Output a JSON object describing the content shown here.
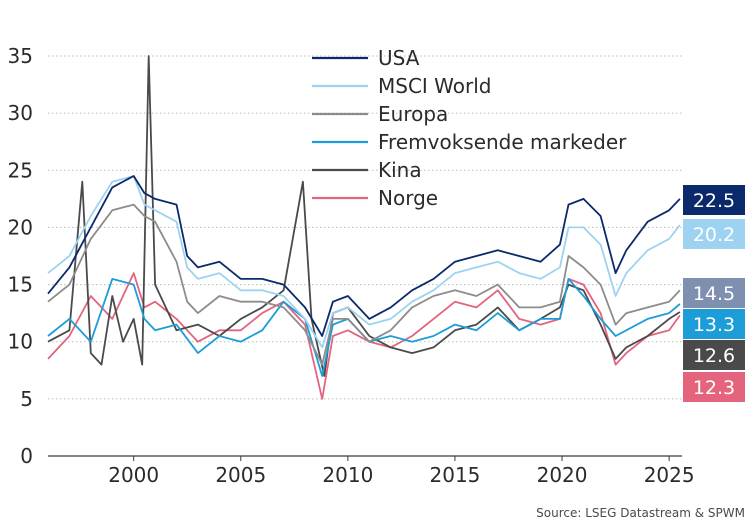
{
  "chart_data": {
    "type": "line",
    "title": "",
    "xlabel": "",
    "ylabel": "",
    "xlim": [
      1996,
      2025.6
    ],
    "ylim": [
      0,
      35
    ],
    "y_ticks": [
      0,
      5,
      10,
      15,
      20,
      25,
      30,
      35
    ],
    "x_ticks": [
      2000,
      2005,
      2010,
      2015,
      2020,
      2025
    ],
    "grid": "horizontal-dotted",
    "legend_position": "top-center",
    "source": "Source: LSEG Datastream & SPWM",
    "series": [
      {
        "name": "USA",
        "color": "#0b2a6b",
        "end_label": "22.5",
        "points": [
          [
            1996,
            14.2
          ],
          [
            1997,
            16.5
          ],
          [
            1998,
            20.0
          ],
          [
            1999,
            23.5
          ],
          [
            2000,
            24.5
          ],
          [
            2000.5,
            23.0
          ],
          [
            2001,
            22.5
          ],
          [
            2002,
            22.0
          ],
          [
            2002.5,
            17.5
          ],
          [
            2003,
            16.5
          ],
          [
            2004,
            17.0
          ],
          [
            2005,
            15.5
          ],
          [
            2006,
            15.5
          ],
          [
            2007,
            15.0
          ],
          [
            2008,
            13.0
          ],
          [
            2008.8,
            10.5
          ],
          [
            2009.3,
            13.5
          ],
          [
            2010,
            14.0
          ],
          [
            2011,
            12.0
          ],
          [
            2012,
            13.0
          ],
          [
            2013,
            14.5
          ],
          [
            2014,
            15.5
          ],
          [
            2015,
            17.0
          ],
          [
            2016,
            17.5
          ],
          [
            2017,
            18.0
          ],
          [
            2018,
            17.5
          ],
          [
            2019,
            17.0
          ],
          [
            2019.9,
            18.5
          ],
          [
            2020.3,
            22.0
          ],
          [
            2021,
            22.5
          ],
          [
            2021.8,
            21.0
          ],
          [
            2022.5,
            16.0
          ],
          [
            2023,
            18.0
          ],
          [
            2024,
            20.5
          ],
          [
            2025,
            21.5
          ],
          [
            2025.5,
            22.5
          ]
        ]
      },
      {
        "name": "MSCI World",
        "color": "#9dd3f0",
        "end_label": "20.2",
        "points": [
          [
            1996,
            16.0
          ],
          [
            1997,
            17.5
          ],
          [
            1998,
            21.0
          ],
          [
            1999,
            24.0
          ],
          [
            2000,
            24.5
          ],
          [
            2000.5,
            22.0
          ],
          [
            2001,
            21.5
          ],
          [
            2002,
            20.5
          ],
          [
            2002.5,
            16.5
          ],
          [
            2003,
            15.5
          ],
          [
            2004,
            16.0
          ],
          [
            2005,
            14.5
          ],
          [
            2006,
            14.5
          ],
          [
            2007,
            14.0
          ],
          [
            2008,
            12.0
          ],
          [
            2008.8,
            9.5
          ],
          [
            2009.3,
            12.5
          ],
          [
            2010,
            13.0
          ],
          [
            2011,
            11.5
          ],
          [
            2012,
            12.0
          ],
          [
            2013,
            13.5
          ],
          [
            2014,
            14.5
          ],
          [
            2015,
            16.0
          ],
          [
            2016,
            16.5
          ],
          [
            2017,
            17.0
          ],
          [
            2018,
            16.0
          ],
          [
            2019,
            15.5
          ],
          [
            2019.9,
            16.5
          ],
          [
            2020.3,
            20.0
          ],
          [
            2021,
            20.0
          ],
          [
            2021.8,
            18.5
          ],
          [
            2022.5,
            14.0
          ],
          [
            2023,
            16.0
          ],
          [
            2024,
            18.0
          ],
          [
            2025,
            19.0
          ],
          [
            2025.5,
            20.2
          ]
        ]
      },
      {
        "name": "Europa",
        "color": "#8c8c8c",
        "end_label": "14.5",
        "points": [
          [
            1996,
            13.5
          ],
          [
            1997,
            15.0
          ],
          [
            1998,
            19.0
          ],
          [
            1999,
            21.5
          ],
          [
            2000,
            22.0
          ],
          [
            2000.5,
            21.0
          ],
          [
            2001,
            20.5
          ],
          [
            2002,
            17.0
          ],
          [
            2002.5,
            13.5
          ],
          [
            2003,
            12.5
          ],
          [
            2004,
            14.0
          ],
          [
            2005,
            13.5
          ],
          [
            2006,
            13.5
          ],
          [
            2007,
            13.0
          ],
          [
            2008,
            11.0
          ],
          [
            2008.8,
            8.0
          ],
          [
            2009.3,
            12.0
          ],
          [
            2010,
            12.0
          ],
          [
            2011,
            10.0
          ],
          [
            2012,
            11.0
          ],
          [
            2013,
            13.0
          ],
          [
            2014,
            14.0
          ],
          [
            2015,
            14.5
          ],
          [
            2016,
            14.0
          ],
          [
            2017,
            15.0
          ],
          [
            2018,
            13.0
          ],
          [
            2019,
            13.0
          ],
          [
            2019.9,
            13.5
          ],
          [
            2020.3,
            17.5
          ],
          [
            2021,
            16.5
          ],
          [
            2021.8,
            15.0
          ],
          [
            2022.5,
            11.5
          ],
          [
            2023,
            12.5
          ],
          [
            2024,
            13.0
          ],
          [
            2025,
            13.5
          ],
          [
            2025.5,
            14.5
          ]
        ]
      },
      {
        "name": "Fremvoksende markeder",
        "color": "#1c9dd8",
        "end_label": "13.3",
        "points": [
          [
            1996,
            10.5
          ],
          [
            1997,
            12.0
          ],
          [
            1998,
            10.0
          ],
          [
            1999,
            15.5
          ],
          [
            2000,
            15.0
          ],
          [
            2000.5,
            12.0
          ],
          [
            2001,
            11.0
          ],
          [
            2002,
            11.5
          ],
          [
            2003,
            9.0
          ],
          [
            2004,
            10.5
          ],
          [
            2005,
            10.0
          ],
          [
            2006,
            11.0
          ],
          [
            2007,
            13.5
          ],
          [
            2008,
            12.0
          ],
          [
            2008.8,
            7.0
          ],
          [
            2009.3,
            11.5
          ],
          [
            2010,
            12.0
          ],
          [
            2011,
            10.0
          ],
          [
            2012,
            10.5
          ],
          [
            2013,
            10.0
          ],
          [
            2014,
            10.5
          ],
          [
            2015,
            11.5
          ],
          [
            2016,
            11.0
          ],
          [
            2017,
            12.5
          ],
          [
            2018,
            11.0
          ],
          [
            2019,
            12.0
          ],
          [
            2019.9,
            12.0
          ],
          [
            2020.3,
            15.5
          ],
          [
            2021,
            14.0
          ],
          [
            2021.8,
            12.0
          ],
          [
            2022.5,
            10.5
          ],
          [
            2023,
            11.0
          ],
          [
            2024,
            12.0
          ],
          [
            2025,
            12.5
          ],
          [
            2025.5,
            13.3
          ]
        ]
      },
      {
        "name": "Kina",
        "color": "#4a4a4a",
        "end_label": "12.6",
        "points": [
          [
            1996,
            10.0
          ],
          [
            1997,
            11.0
          ],
          [
            1997.6,
            24.0
          ],
          [
            1998,
            9.0
          ],
          [
            1998.5,
            8.0
          ],
          [
            1999,
            14.0
          ],
          [
            1999.5,
            10.0
          ],
          [
            2000,
            12.0
          ],
          [
            2000.4,
            8.0
          ],
          [
            2000.7,
            35.0
          ],
          [
            2001,
            15.0
          ],
          [
            2002,
            11.0
          ],
          [
            2003,
            11.5
          ],
          [
            2004,
            10.5
          ],
          [
            2005,
            12.0
          ],
          [
            2006,
            13.0
          ],
          [
            2007,
            14.5
          ],
          [
            2007.9,
            24.0
          ],
          [
            2008.3,
            12.0
          ],
          [
            2008.9,
            7.0
          ],
          [
            2009.3,
            12.5
          ],
          [
            2010,
            13.0
          ],
          [
            2011,
            10.5
          ],
          [
            2012,
            9.5
          ],
          [
            2013,
            9.0
          ],
          [
            2014,
            9.5
          ],
          [
            2015,
            11.0
          ],
          [
            2016,
            11.5
          ],
          [
            2017,
            13.0
          ],
          [
            2018,
            11.0
          ],
          [
            2019,
            12.0
          ],
          [
            2019.9,
            13.0
          ],
          [
            2020.3,
            15.0
          ],
          [
            2021,
            14.5
          ],
          [
            2021.8,
            11.5
          ],
          [
            2022.5,
            8.5
          ],
          [
            2023,
            9.5
          ],
          [
            2024,
            10.5
          ],
          [
            2025,
            12.0
          ],
          [
            2025.5,
            12.6
          ]
        ]
      },
      {
        "name": "Norge",
        "color": "#e4647e",
        "end_label": "12.3",
        "points": [
          [
            1996,
            8.5
          ],
          [
            1997,
            10.5
          ],
          [
            1998,
            14.0
          ],
          [
            1999,
            12.0
          ],
          [
            2000,
            16.0
          ],
          [
            2000.5,
            13.0
          ],
          [
            2001,
            13.5
          ],
          [
            2002,
            12.0
          ],
          [
            2003,
            10.0
          ],
          [
            2004,
            11.0
          ],
          [
            2005,
            11.0
          ],
          [
            2006,
            12.5
          ],
          [
            2007,
            13.5
          ],
          [
            2008,
            11.5
          ],
          [
            2008.8,
            5.0
          ],
          [
            2009.3,
            10.5
          ],
          [
            2010,
            11.0
          ],
          [
            2011,
            10.0
          ],
          [
            2012,
            9.5
          ],
          [
            2013,
            10.5
          ],
          [
            2014,
            12.0
          ],
          [
            2015,
            13.5
          ],
          [
            2016,
            13.0
          ],
          [
            2017,
            14.5
          ],
          [
            2018,
            12.0
          ],
          [
            2019,
            11.5
          ],
          [
            2019.9,
            12.0
          ],
          [
            2020.3,
            15.5
          ],
          [
            2021,
            15.0
          ],
          [
            2021.8,
            12.5
          ],
          [
            2022.5,
            8.0
          ],
          [
            2023,
            9.0
          ],
          [
            2024,
            10.5
          ],
          [
            2025,
            11.0
          ],
          [
            2025.5,
            12.3
          ]
        ]
      }
    ]
  }
}
